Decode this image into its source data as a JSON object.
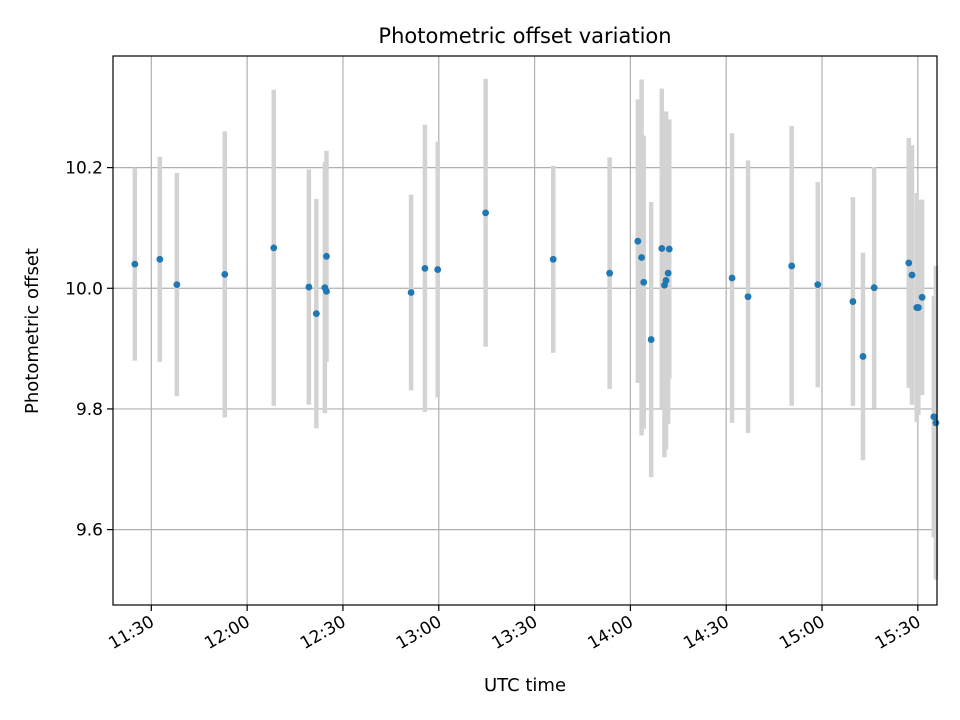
{
  "chart_data": {
    "type": "scatter",
    "title": "Photometric offset variation",
    "xlabel": "UTC time",
    "ylabel": "Photometric offset",
    "xlim": [
      "11:18",
      "15:36"
    ],
    "ylim": [
      9.475,
      10.385
    ],
    "x_ticks": [
      "11:30",
      "12:00",
      "12:30",
      "13:00",
      "13:30",
      "14:00",
      "14:30",
      "15:00",
      "15:30"
    ],
    "y_ticks": [
      9.6,
      9.8,
      10.0,
      10.2
    ],
    "y_tick_labels": [
      "9.6",
      "9.8",
      "10.0",
      "10.2"
    ],
    "grid": true,
    "error_bar_color": "#d3d3d3",
    "point_color": "#1f77b4",
    "points": [
      {
        "time": "11:24:50",
        "y": 10.04,
        "err": 0.16
      },
      {
        "time": "11:32:40",
        "y": 10.048,
        "err": 0.17
      },
      {
        "time": "11:38:00",
        "y": 10.006,
        "err": 0.185
      },
      {
        "time": "11:53:00",
        "y": 10.023,
        "err": 0.237
      },
      {
        "time": "12:08:20",
        "y": 10.067,
        "err": 0.262
      },
      {
        "time": "12:19:20",
        "y": 10.002,
        "err": 0.195
      },
      {
        "time": "12:21:40",
        "y": 9.958,
        "err": 0.19
      },
      {
        "time": "12:24:20",
        "y": 10.001,
        "err": 0.208
      },
      {
        "time": "12:24:50",
        "y": 10.053,
        "err": 0.175
      },
      {
        "time": "12:24:50",
        "y": 9.995,
        "err": 0.0
      },
      {
        "time": "12:51:20",
        "y": 9.993,
        "err": 0.162
      },
      {
        "time": "12:55:40",
        "y": 10.033,
        "err": 0.238
      },
      {
        "time": "12:59:40",
        "y": 10.031,
        "err": 0.212
      },
      {
        "time": "13:14:40",
        "y": 10.125,
        "err": 0.222
      },
      {
        "time": "13:35:50",
        "y": 10.048,
        "err": 0.155
      },
      {
        "time": "13:53:30",
        "y": 10.025,
        "err": 0.192
      },
      {
        "time": "14:02:20",
        "y": 10.078,
        "err": 0.235
      },
      {
        "time": "14:03:30",
        "y": 10.051,
        "err": 0.295
      },
      {
        "time": "14:04:10",
        "y": 10.01,
        "err": 0.243
      },
      {
        "time": "14:06:30",
        "y": 9.915,
        "err": 0.228
      },
      {
        "time": "14:09:50",
        "y": 10.066,
        "err": 0.265
      },
      {
        "time": "14:10:40",
        "y": 10.005,
        "err": 0.285
      },
      {
        "time": "14:11:10",
        "y": 10.013,
        "err": 0.28
      },
      {
        "time": "14:11:50",
        "y": 10.025,
        "err": 0.25
      },
      {
        "time": "14:12:10",
        "y": 10.065,
        "err": 0.215
      },
      {
        "time": "14:31:50",
        "y": 10.017,
        "err": 0.24
      },
      {
        "time": "14:36:50",
        "y": 9.986,
        "err": 0.226
      },
      {
        "time": "14:50:30",
        "y": 10.037,
        "err": 0.232
      },
      {
        "time": "14:58:40",
        "y": 10.006,
        "err": 0.17
      },
      {
        "time": "15:09:40",
        "y": 9.978,
        "err": 0.173
      },
      {
        "time": "15:12:50",
        "y": 9.887,
        "err": 0.172
      },
      {
        "time": "15:16:20",
        "y": 10.001,
        "err": 0.2
      },
      {
        "time": "15:27:10",
        "y": 10.042,
        "err": 0.207
      },
      {
        "time": "15:28:10",
        "y": 10.022,
        "err": 0.215
      },
      {
        "time": "15:29:40",
        "y": 9.968,
        "err": 0.19
      },
      {
        "time": "15:30:10",
        "y": 9.968,
        "err": 0.178
      },
      {
        "time": "15:31:20",
        "y": 9.985,
        "err": 0.162
      },
      {
        "time": "15:35:00",
        "y": 9.787,
        "err": 0.2
      },
      {
        "time": "15:35:40",
        "y": 9.777,
        "err": 0.26
      }
    ]
  }
}
